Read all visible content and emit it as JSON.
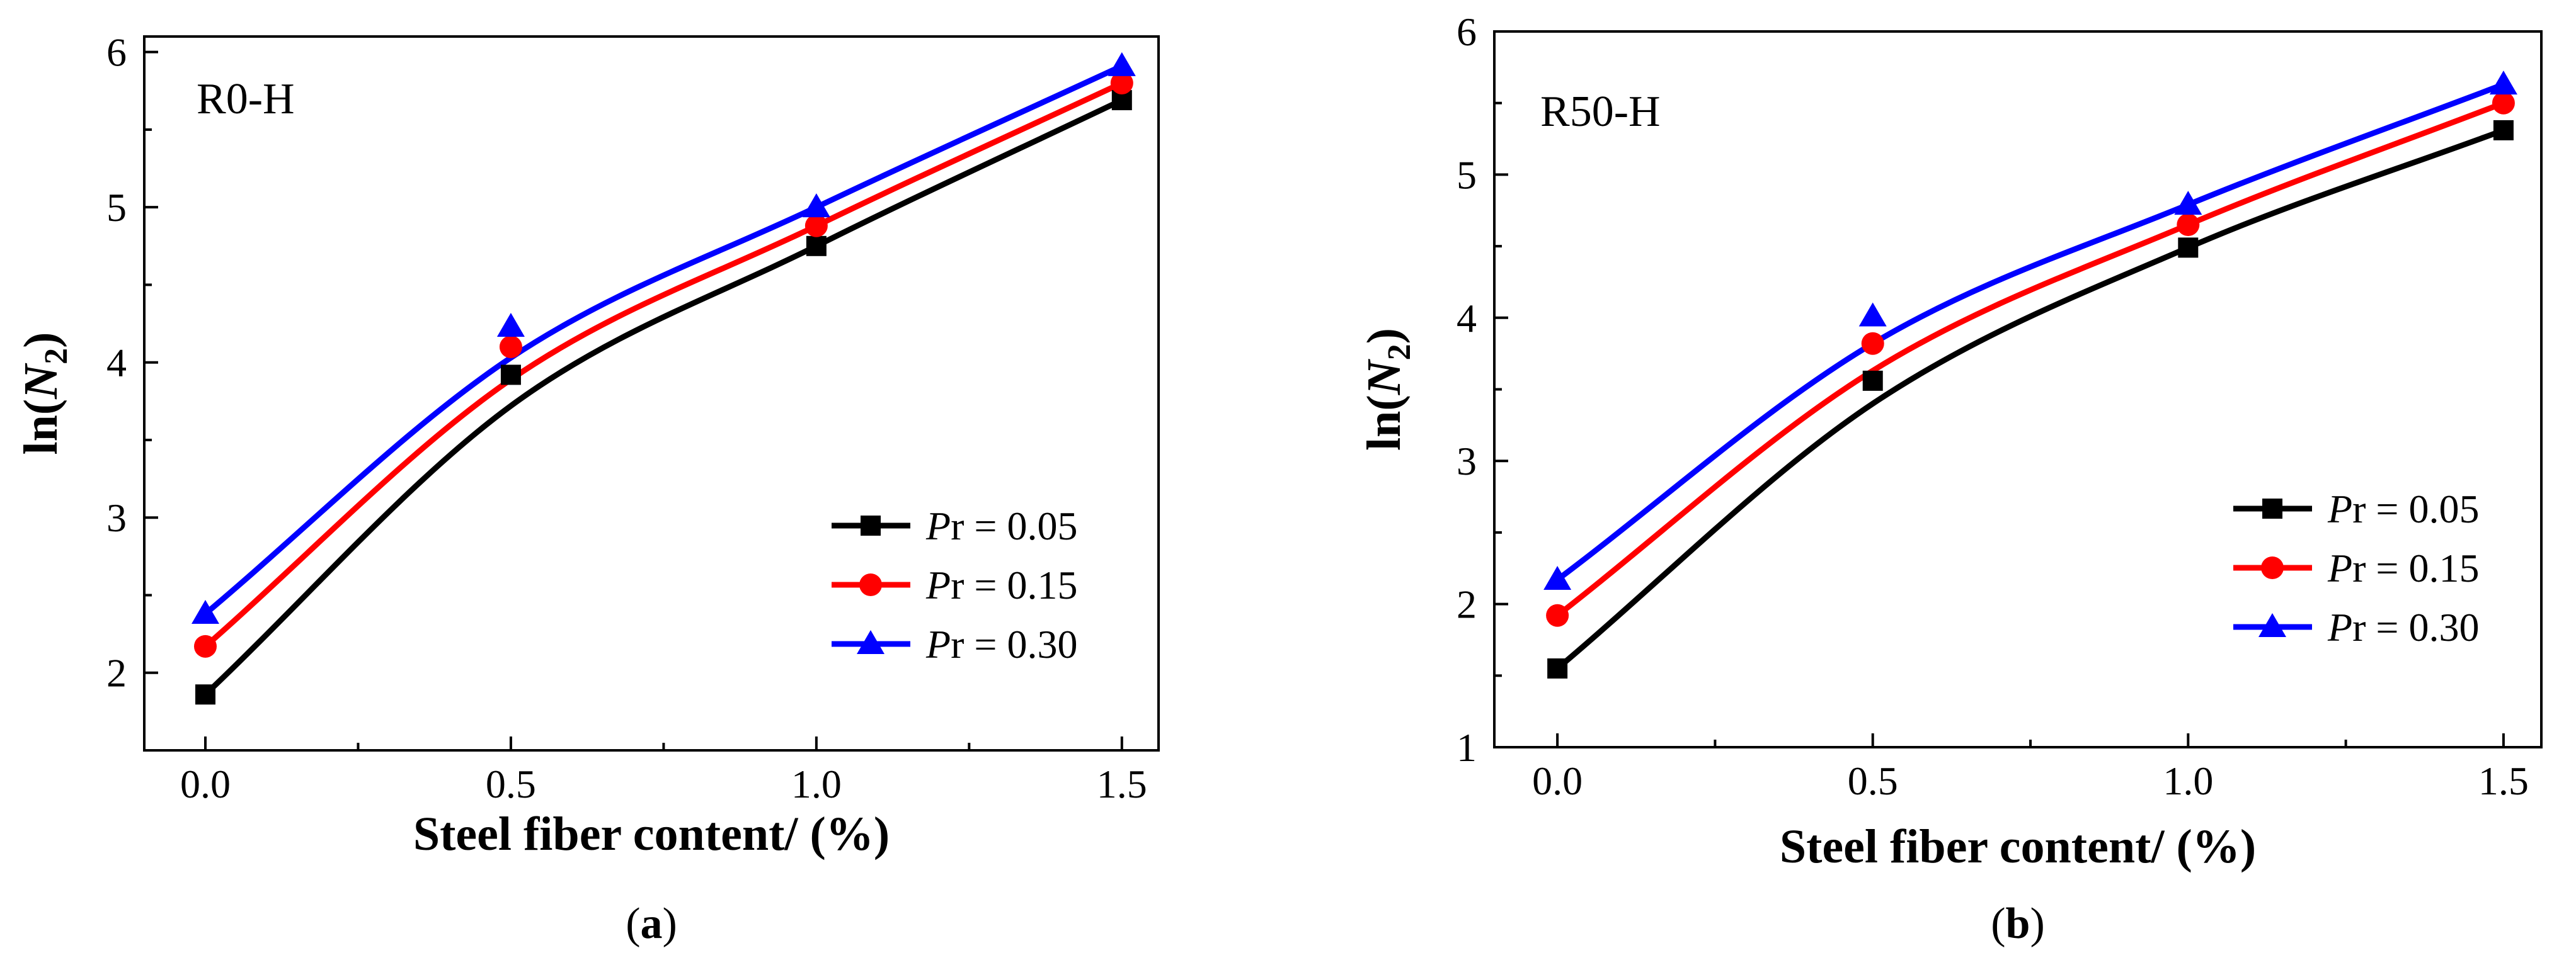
{
  "chart_data": [
    {
      "type": "line",
      "panel_label": "a",
      "annotation": "R0-H",
      "title": "",
      "xlabel": "Steel fiber content/ (%)",
      "ylabel_prefix": "ln(",
      "ylabel_var": "N",
      "ylabel_sub": "2",
      "ylabel_suffix": ")",
      "xlim": [
        -0.1,
        1.56
      ],
      "ylim": [
        1.5,
        6.1
      ],
      "xticks": [
        0.0,
        0.5,
        1.0,
        1.5
      ],
      "xtick_labels": [
        "0.0",
        "0.5",
        "1.0",
        "1.5"
      ],
      "yticks": [
        2,
        3,
        4,
        5,
        6
      ],
      "ytick_labels": [
        "2",
        "3",
        "4",
        "5",
        "6"
      ],
      "legend_position": "lower-right",
      "x": [
        0.0,
        0.5,
        1.0,
        1.5
      ],
      "series": [
        {
          "name_italic": "P",
          "name_rest": "r = 0.05",
          "color": "#000000",
          "marker": "square",
          "values": [
            1.86,
            3.92,
            4.75,
            5.69
          ],
          "fit": [
            1.86,
            3.72,
            4.75,
            5.69
          ]
        },
        {
          "name_italic": "P",
          "name_rest": "r = 0.15",
          "color": "#ff0000",
          "marker": "circle",
          "values": [
            2.17,
            4.1,
            4.88,
            5.8
          ],
          "fit": [
            2.17,
            3.89,
            4.88,
            5.8
          ]
        },
        {
          "name_italic": "P",
          "name_rest": "r = 0.30",
          "color": "#0000ff",
          "marker": "triangle",
          "values": [
            2.38,
            4.23,
            5.0,
            5.91
          ],
          "fit": [
            2.38,
            4.03,
            5.0,
            5.91
          ]
        }
      ]
    },
    {
      "type": "line",
      "panel_label": "b",
      "annotation": "R50-H",
      "title": "",
      "xlabel": "Steel fiber content/ (%)",
      "ylabel_prefix": "ln(",
      "ylabel_var": "N",
      "ylabel_sub": "2",
      "ylabel_suffix": ")",
      "xlim": [
        -0.1,
        1.56
      ],
      "ylim": [
        1.0,
        6.0
      ],
      "xticks": [
        0.0,
        0.5,
        1.0,
        1.5
      ],
      "xtick_labels": [
        "0.0",
        "0.5",
        "1.0",
        "1.5"
      ],
      "yticks": [
        1,
        2,
        3,
        4,
        5,
        6
      ],
      "ytick_labels": [
        "1",
        "2",
        "3",
        "4",
        "5",
        "6"
      ],
      "legend_position": "lower-right",
      "x": [
        0.0,
        0.5,
        1.0,
        1.5
      ],
      "series": [
        {
          "name_italic": "P",
          "name_rest": "r = 0.05",
          "color": "#000000",
          "marker": "square",
          "values": [
            1.55,
            3.56,
            4.49,
            5.31
          ],
          "fit": [
            1.55,
            3.4,
            4.49,
            5.31
          ]
        },
        {
          "name_italic": "P",
          "name_rest": "r = 0.15",
          "color": "#ff0000",
          "marker": "circle",
          "values": [
            1.92,
            3.82,
            4.65,
            5.5
          ],
          "fit": [
            1.92,
            3.63,
            4.65,
            5.5
          ]
        },
        {
          "name_italic": "P",
          "name_rest": "r = 0.30",
          "color": "#0000ff",
          "marker": "triangle",
          "values": [
            2.17,
            4.01,
            4.79,
            5.63
          ],
          "fit": [
            2.17,
            3.82,
            4.79,
            5.63
          ]
        }
      ]
    }
  ]
}
